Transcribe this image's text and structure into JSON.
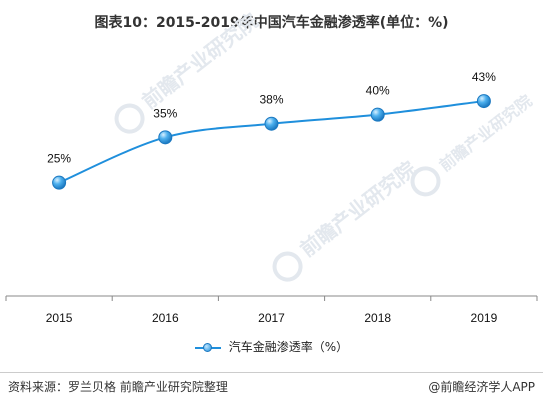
{
  "title": "图表10：2015-2019年中国汽车金融渗透率(单位：%)",
  "watermarks": [
    "前瞻产业研究院",
    "前瞻产业研究院",
    "前瞻产业研究院"
  ],
  "legend_label": "汽车金融渗透率（%）",
  "footer": {
    "source": "资料来源：罗兰贝格 前瞻产业研究院整理",
    "brand": "@前瞻经济学人APP"
  },
  "colors": {
    "line": "#1f8fdc",
    "marker": "#4db0ee",
    "axis": "#888888"
  },
  "chart_data": {
    "type": "line",
    "title": "图表10：2015-2019年中国汽车金融渗透率(单位：%)",
    "categories": [
      "2015",
      "2016",
      "2017",
      "2018",
      "2019"
    ],
    "series": [
      {
        "name": "汽车金融渗透率（%）",
        "values": [
          25,
          35,
          38,
          40,
          43
        ],
        "labels": [
          "25%",
          "35%",
          "38%",
          "40%",
          "43%"
        ]
      }
    ],
    "xlabel": "",
    "ylabel": "",
    "ylim": [
      0,
      60
    ],
    "grid": false,
    "legend": "bottom",
    "smooth": true
  }
}
